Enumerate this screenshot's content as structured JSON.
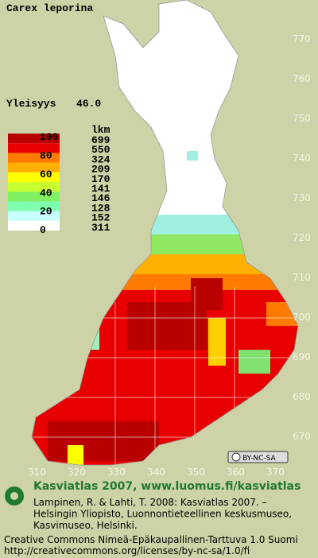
{
  "title": "Carex leporina",
  "frequency": {
    "label": "Yleisyys",
    "value": "46.0"
  },
  "legend": {
    "scale_labels": [
      100,
      80,
      60,
      40,
      20,
      0
    ],
    "count_header": "lkm",
    "counts": [
      699,
      550,
      324,
      209,
      170,
      141,
      146,
      128,
      152,
      311
    ],
    "colors": [
      "#b80000",
      "#e80000",
      "#ff7a00",
      "#ffb000",
      "#ffff00",
      "#c8ff30",
      "#80f060",
      "#80ffb0",
      "#c8ffff",
      "#ffffff"
    ]
  },
  "axis": {
    "north_labels": [
      770,
      760,
      750,
      740,
      730,
      720,
      710,
      700,
      690,
      680,
      670
    ],
    "east_labels": [
      310,
      320,
      330,
      340,
      350,
      360,
      370
    ]
  },
  "badge": "BY-NC-SA",
  "footer": {
    "heading": "Kasviatlas 2007, www.luomus.fi/kasviatlas",
    "citation_lines": [
      "Lampinen, R. & Lahti, T. 2008: Kasviatlas 2007. –",
      "Helsingin Yliopisto, Luonnontieteellinen keskusmuseo,",
      "Kasvimuseo, Helsinki."
    ],
    "license_lines": [
      "Creative Commons Nimeä-Epäkaupallinen-Tarttuva 1.0 Suomi",
      "http://creativecommons.org/licenses/by-nc-sa/1.0/fi"
    ]
  }
}
